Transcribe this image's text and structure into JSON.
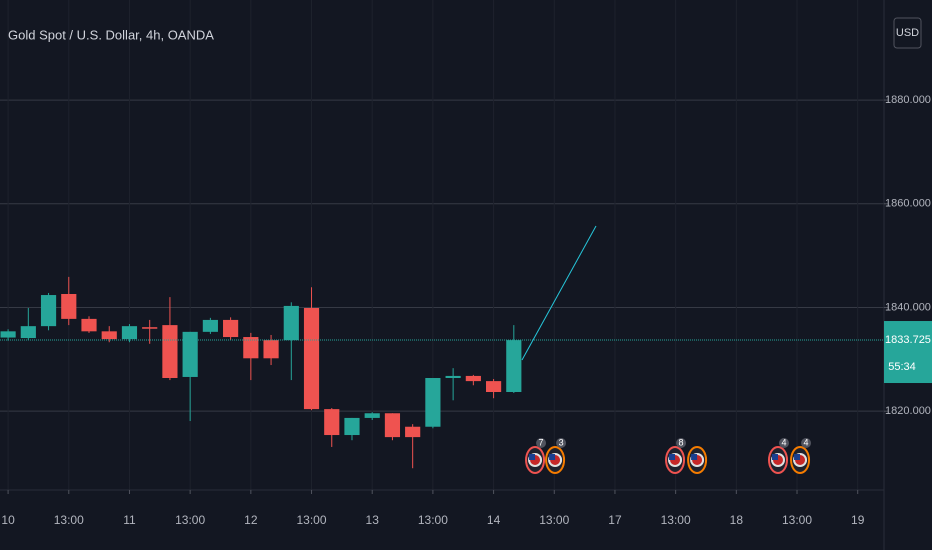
{
  "chart_data": {
    "type": "candlestick",
    "title": "Gold Spot / U.S. Dollar, 4h, OANDA",
    "currency": "USD",
    "x": [
      0,
      1,
      2,
      3,
      4,
      5,
      6,
      7,
      8,
      9,
      10,
      11,
      12,
      13,
      14,
      15,
      16,
      17,
      18,
      19,
      20,
      21,
      22,
      23,
      24,
      25
    ],
    "open": [
      1834.2,
      1834.1,
      1836.4,
      1842.6,
      1837.8,
      1835.4,
      1833.9,
      1836.2,
      1836.6,
      1826.6,
      1835.3,
      1837.6,
      1834.3,
      1833.7,
      1833.7,
      1839.9,
      1820.4,
      1815.4,
      1818.7,
      1819.6,
      1817.0,
      1817.0,
      1826.4,
      1826.8,
      1825.8,
      1823.7
    ],
    "high": [
      1835.8,
      1839.9,
      1842.8,
      1845.9,
      1838.3,
      1836.4,
      1836.8,
      1837.6,
      1842.0,
      1835.3,
      1838.0,
      1838.1,
      1835.1,
      1834.7,
      1841.0,
      1843.9,
      1820.6,
      1818.7,
      1819.8,
      1819.6,
      1817.5,
      1826.4,
      1828.3,
      1827.0,
      1826.2,
      1836.6
    ],
    "low": [
      1833.6,
      1833.7,
      1835.6,
      1836.6,
      1835.1,
      1833.3,
      1833.3,
      1833.0,
      1826.0,
      1818.1,
      1834.9,
      1833.7,
      1826.0,
      1828.9,
      1826.0,
      1820.2,
      1813.1,
      1814.4,
      1818.3,
      1814.4,
      1809.0,
      1816.7,
      1822.1,
      1825.0,
      1822.5,
      1823.5
    ],
    "close": [
      1835.4,
      1836.4,
      1842.4,
      1837.8,
      1835.4,
      1833.9,
      1836.4,
      1835.9,
      1826.4,
      1835.3,
      1837.6,
      1834.3,
      1830.2,
      1830.2,
      1840.3,
      1820.4,
      1815.4,
      1818.7,
      1819.6,
      1815.0,
      1815.0,
      1826.4,
      1826.8,
      1825.8,
      1823.7,
      1833.7
    ],
    "up_color": "#26a69a",
    "down_color": "#ef5350",
    "xlim": [
      -0.4,
      43.3
    ],
    "xticks": [
      {
        "value": 0,
        "label": "10"
      },
      {
        "value": 3,
        "label": "13:00"
      },
      {
        "value": 6,
        "label": "11"
      },
      {
        "value": 9,
        "label": "13:00"
      },
      {
        "value": 12,
        "label": "12"
      },
      {
        "value": 15,
        "label": "13:00"
      },
      {
        "value": 18,
        "label": "13"
      },
      {
        "value": 21,
        "label": "13:00"
      },
      {
        "value": 24,
        "label": "14"
      },
      {
        "value": 27,
        "label": "13:00"
      },
      {
        "value": 30,
        "label": "17"
      },
      {
        "value": 33,
        "label": "13:00"
      },
      {
        "value": 36,
        "label": "18"
      },
      {
        "value": 39,
        "label": "13:00"
      },
      {
        "value": 42,
        "label": "19"
      }
    ],
    "ylim": [
      1804.8,
      1899.3
    ],
    "yticks": [
      {
        "value": 1820,
        "label": "1820.000"
      },
      {
        "value": 1840,
        "label": "1840.000"
      },
      {
        "value": 1860,
        "label": "1860.000"
      },
      {
        "value": 1880,
        "label": "1880.000"
      }
    ],
    "last_price": {
      "value": 1833.725,
      "label": "1833.725"
    },
    "countdown": "55:34",
    "grid": true,
    "events": [
      {
        "x": 26.05,
        "count": 7
      },
      {
        "x": 27.04,
        "count": 3
      },
      {
        "x": 32.97,
        "count": 8
      },
      {
        "x": 34.06
      },
      {
        "x": 38.06,
        "count": 4
      },
      {
        "x": 39.15,
        "count": 4
      }
    ]
  }
}
